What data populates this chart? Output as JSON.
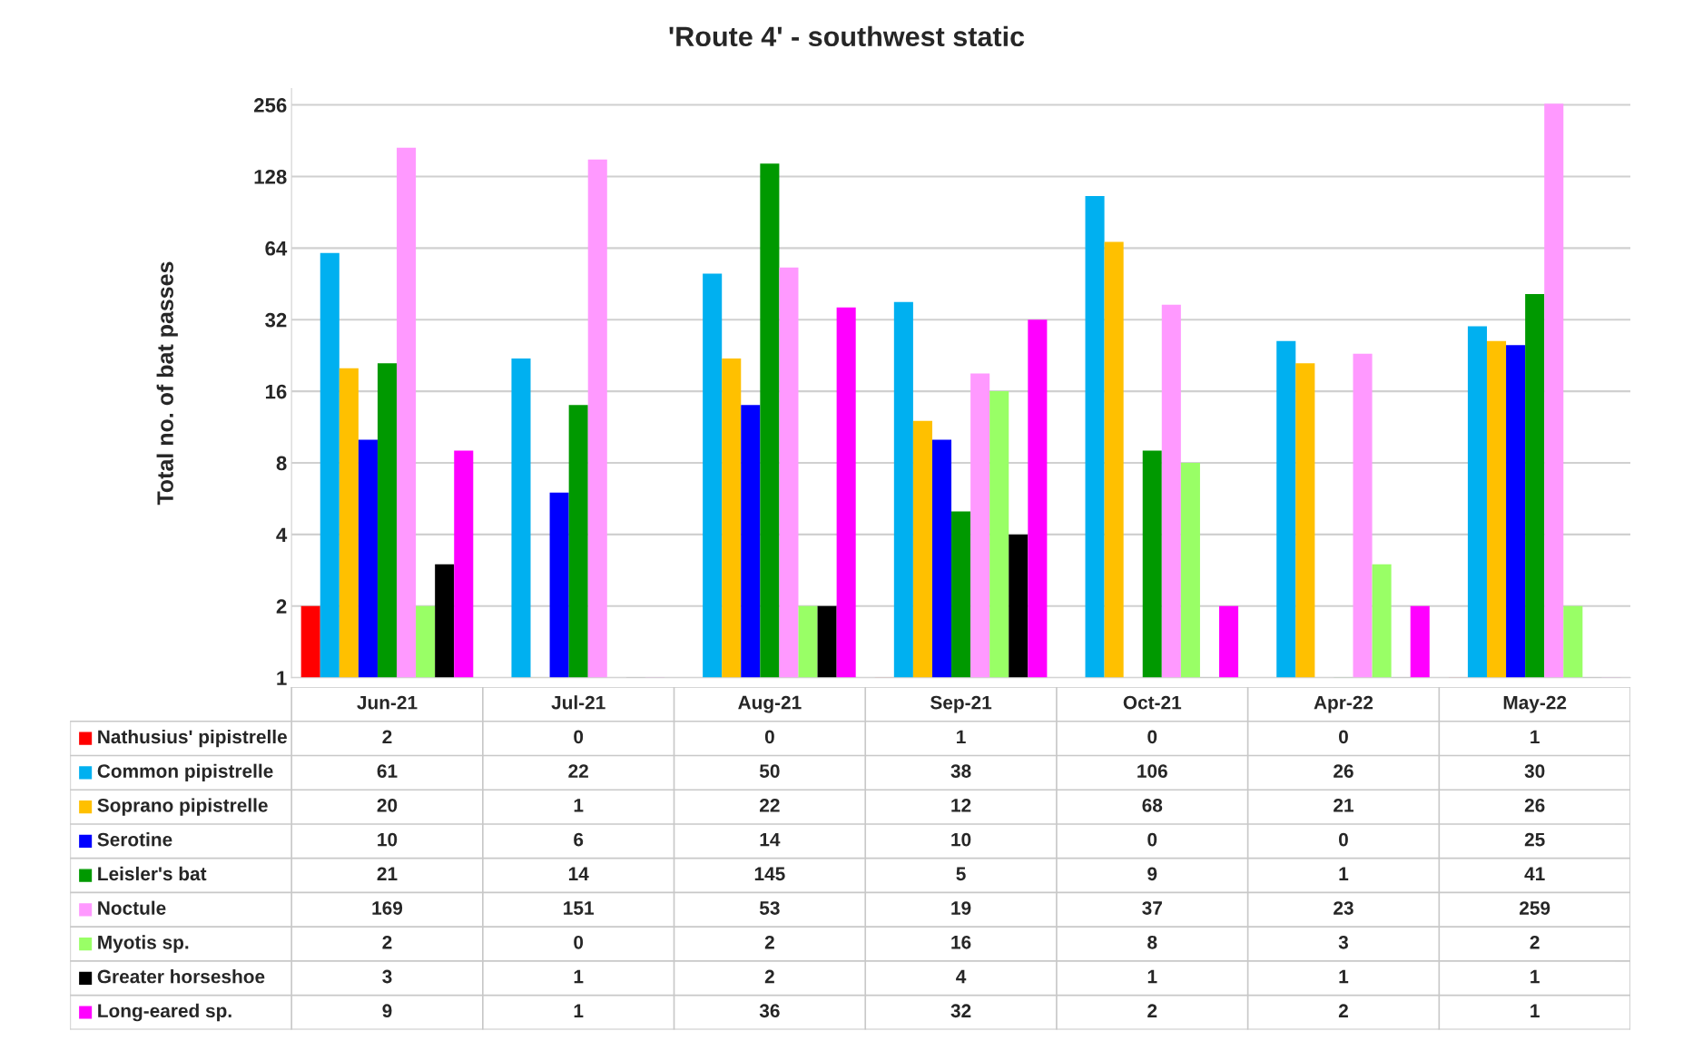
{
  "chart_data": {
    "type": "bar",
    "title": "'Route 4' - southwest static",
    "ylabel": "Total no. of bat passes",
    "categories": [
      "Jun-21",
      "Jul-21",
      "Aug-21",
      "Sep-21",
      "Oct-21",
      "Apr-22",
      "May-22"
    ],
    "series": [
      {
        "name": "Nathusius' pipistrelle",
        "color": "#ff0000",
        "values": [
          2,
          null,
          null,
          1,
          null,
          null,
          1
        ],
        "value_labels": [
          "2",
          "0",
          "0",
          "1",
          "0",
          "0",
          "1"
        ]
      },
      {
        "name": "Common pipistrelle",
        "color": "#00b0f0",
        "values": [
          61,
          22,
          50,
          38,
          106,
          26,
          30
        ],
        "value_labels": [
          "61",
          "22",
          "50",
          "38",
          "106",
          "26",
          "30"
        ]
      },
      {
        "name": "Soprano pipistrelle",
        "color": "#ffc000",
        "values": [
          20,
          1,
          22,
          12,
          68,
          21,
          26
        ],
        "value_labels": [
          "20",
          "1",
          "22",
          "12",
          "68",
          "21",
          "26"
        ]
      },
      {
        "name": "Serotine",
        "color": "#0000ff",
        "values": [
          10,
          6,
          14,
          10,
          null,
          null,
          25
        ],
        "value_labels": [
          "10",
          "6",
          "14",
          "10",
          "0",
          "0",
          "25"
        ]
      },
      {
        "name": "Leisler's bat",
        "color": "#009900",
        "values": [
          21,
          14,
          145,
          5,
          9,
          1,
          41
        ],
        "value_labels": [
          "21",
          "14",
          "145",
          "5",
          "9",
          "1",
          "41"
        ]
      },
      {
        "name": "Noctule",
        "color": "#ff99ff",
        "values": [
          169,
          151,
          53,
          19,
          37,
          23,
          259
        ],
        "value_labels": [
          "169",
          "151",
          "53",
          "19",
          "37",
          "23",
          "259"
        ]
      },
      {
        "name": "Myotis sp.",
        "color": "#99ff66",
        "values": [
          2,
          null,
          2,
          16,
          8,
          3,
          2
        ],
        "value_labels": [
          "2",
          "0",
          "2",
          "16",
          "8",
          "3",
          "2"
        ]
      },
      {
        "name": "Greater horseshoe",
        "color": "#000000",
        "values": [
          3,
          1,
          2,
          4,
          1,
          1,
          1
        ],
        "value_labels": [
          "3",
          "1",
          "2",
          "4",
          "1",
          "1",
          "1"
        ]
      },
      {
        "name": "Long-eared sp.",
        "color": "#ff00ff",
        "values": [
          9,
          1,
          36,
          32,
          2,
          2,
          1
        ],
        "value_labels": [
          "9",
          "1",
          "36",
          "32",
          "2",
          "2",
          "1"
        ]
      }
    ],
    "log": true,
    "ylim": [
      1,
      300
    ],
    "yticks": [
      1,
      2,
      4,
      8,
      16,
      32,
      64,
      128,
      256
    ],
    "grid": "y",
    "legend": "bottom",
    "tick_labels": "y"
  }
}
